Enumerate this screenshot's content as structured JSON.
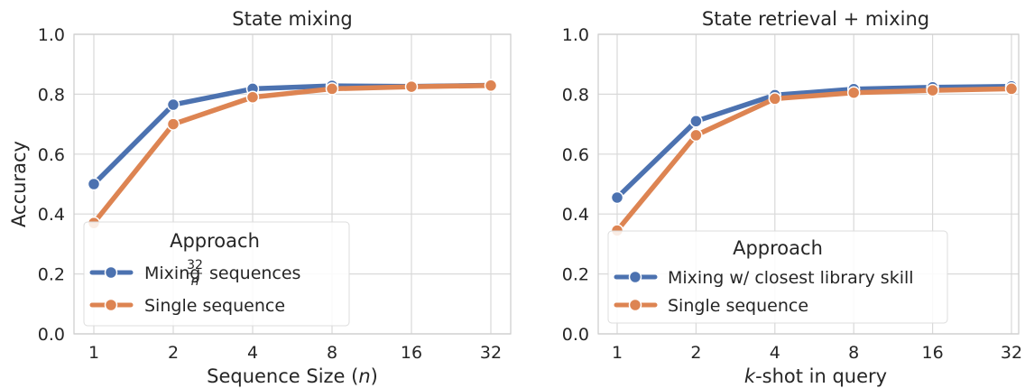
{
  "chart_data": [
    {
      "type": "line",
      "title": "State mixing",
      "xlabel": "Sequence Size (n)",
      "ylabel": "Accuracy",
      "categories": [
        "1",
        "2",
        "4",
        "8",
        "16",
        "32"
      ],
      "ylim": [
        0.0,
        1.0
      ],
      "yticks": [
        "0.0",
        "0.2",
        "0.4",
        "0.6",
        "0.8",
        "1.0"
      ],
      "grid": true,
      "legend": {
        "title": "Approach",
        "placement": "lower-left"
      },
      "series": [
        {
          "name": "Mixing 32/n sequences",
          "color": "#4c72b0",
          "values": [
            0.5,
            0.765,
            0.818,
            0.828,
            0.826,
            0.83
          ]
        },
        {
          "name": "Single sequence",
          "color": "#dd8452",
          "values": [
            0.37,
            0.7,
            0.79,
            0.818,
            0.825,
            0.829
          ]
        }
      ]
    },
    {
      "type": "line",
      "title": "State retrieval + mixing",
      "xlabel": "k-shot in query",
      "ylabel": "",
      "categories": [
        "1",
        "2",
        "4",
        "8",
        "16",
        "32"
      ],
      "ylim": [
        0.0,
        1.0
      ],
      "yticks": [
        "0.0",
        "0.2",
        "0.4",
        "0.6",
        "0.8",
        "1.0"
      ],
      "grid": true,
      "legend": {
        "title": "Approach",
        "placement": "lower-right"
      },
      "series": [
        {
          "name": "Mixing w/ closest library skill",
          "color": "#4c72b0",
          "values": [
            0.455,
            0.71,
            0.797,
            0.817,
            0.823,
            0.826
          ]
        },
        {
          "name": "Single sequence",
          "color": "#dd8452",
          "values": [
            0.345,
            0.663,
            0.785,
            0.805,
            0.813,
            0.818
          ]
        }
      ]
    }
  ]
}
